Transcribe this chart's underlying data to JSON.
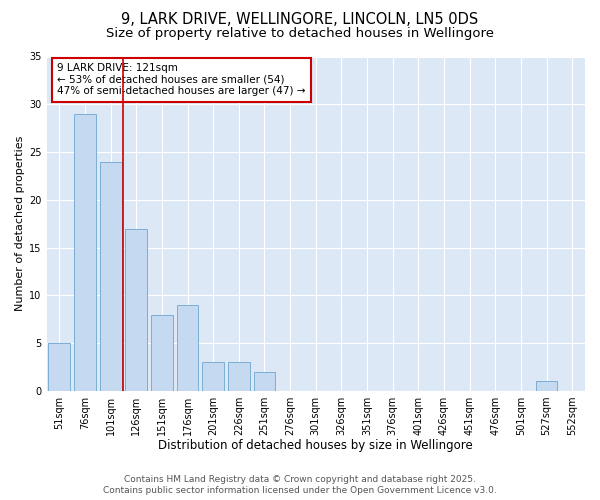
{
  "title1": "9, LARK DRIVE, WELLINGORE, LINCOLN, LN5 0DS",
  "title2": "Size of property relative to detached houses in Wellingore",
  "xlabel": "Distribution of detached houses by size in Wellingore",
  "ylabel": "Number of detached properties",
  "categories": [
    "51sqm",
    "76sqm",
    "101sqm",
    "126sqm",
    "151sqm",
    "176sqm",
    "201sqm",
    "226sqm",
    "251sqm",
    "276sqm",
    "301sqm",
    "326sqm",
    "351sqm",
    "376sqm",
    "401sqm",
    "426sqm",
    "451sqm",
    "476sqm",
    "501sqm",
    "527sqm",
    "552sqm"
  ],
  "values": [
    5,
    29,
    24,
    17,
    8,
    9,
    3,
    3,
    2,
    0,
    0,
    0,
    0,
    0,
    0,
    0,
    0,
    0,
    0,
    1,
    0
  ],
  "bar_color": "#c5d9f0",
  "bar_edge_color": "#7badd4",
  "red_line_x": 2.5,
  "annotation_title": "9 LARK DRIVE: 121sqm",
  "annotation_line1": "← 53% of detached houses are smaller (54)",
  "annotation_line2": "47% of semi-detached houses are larger (47) →",
  "annotation_box_color": "#ffffff",
  "annotation_box_edge": "#cc0000",
  "red_line_color": "#cc0000",
  "ylim": [
    0,
    35
  ],
  "yticks": [
    0,
    5,
    10,
    15,
    20,
    25,
    30,
    35
  ],
  "footer1": "Contains HM Land Registry data © Crown copyright and database right 2025.",
  "footer2": "Contains public sector information licensed under the Open Government Licence v3.0.",
  "figure_bg_color": "#ffffff",
  "plot_bg_color": "#dce8f5",
  "title1_fontsize": 10.5,
  "title2_fontsize": 9.5,
  "xlabel_fontsize": 8.5,
  "ylabel_fontsize": 8,
  "tick_fontsize": 7,
  "footer_fontsize": 6.5,
  "ann_fontsize": 7.5
}
